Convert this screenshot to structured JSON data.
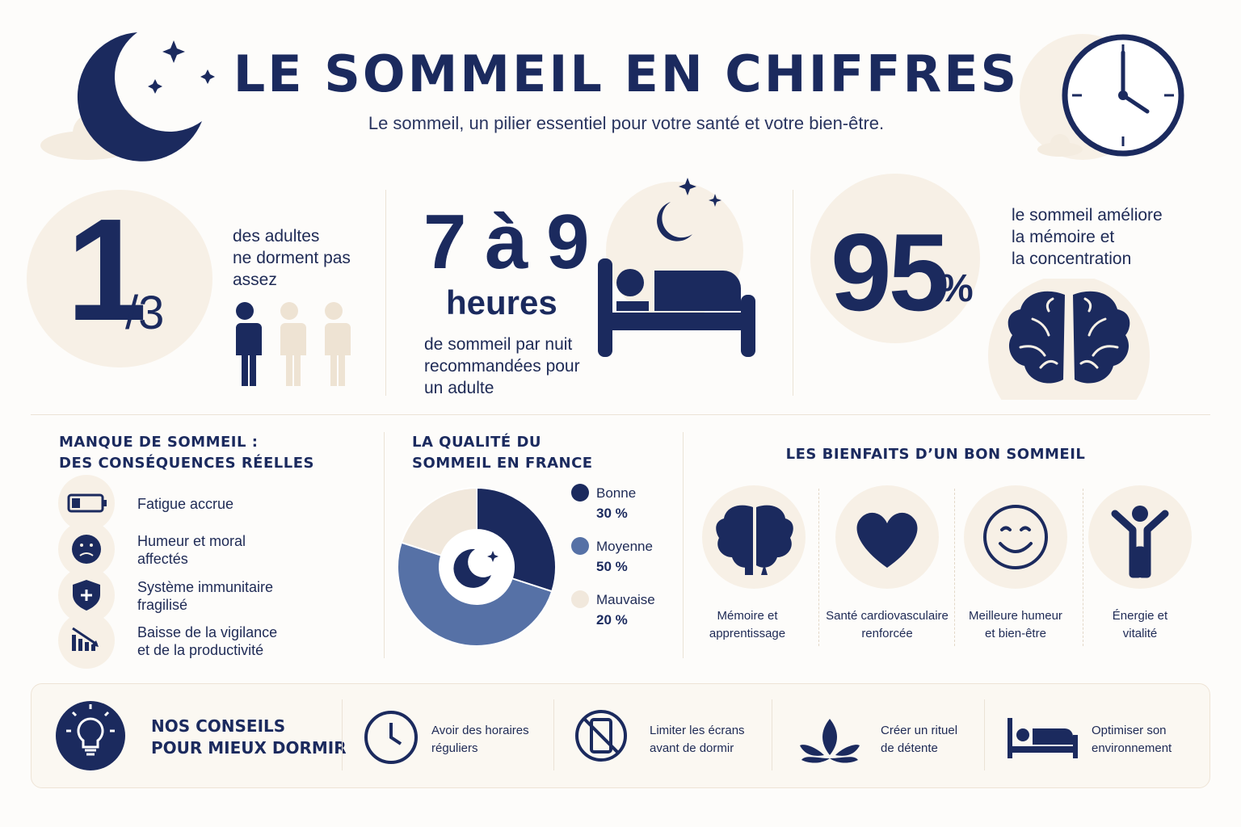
{
  "header": {
    "title": "LE SOMMEIL EN CHIFFRES",
    "subtitle": "Le sommeil, un pilier essentiel pour votre santé et votre bien-être."
  },
  "stats": [
    {
      "big": "1",
      "small": "/3",
      "lines": [
        "des adultes",
        "ne dorment pas",
        "assez"
      ]
    },
    {
      "big": "7 à 9",
      "small": "heures",
      "lines": [
        "de sommeil par nuit",
        "recommandées pour",
        "un adulte"
      ]
    },
    {
      "big": "95",
      "small": "%",
      "lines": [
        "le sommeil améliore",
        "la mémoire et",
        "la concentration"
      ]
    }
  ],
  "consequences": {
    "title": [
      "MANQUE DE SOMMEIL :",
      "DES CONSÉQUENCES RÉELLES"
    ],
    "items": [
      [
        "Fatigue accrue"
      ],
      [
        "Humeur et moral",
        "affectés"
      ],
      [
        "Système immunitaire",
        "fragilisé"
      ],
      [
        "Baisse de la vigilance",
        "et de la productivité"
      ]
    ]
  },
  "chart_data": {
    "type": "pie",
    "title": "LA QUALITÉ DU SOMMEIL EN FRANCE",
    "categories": [
      "Bonne",
      "Moyenne",
      "Mauvaise"
    ],
    "values": [
      30,
      50,
      20
    ],
    "value_labels": [
      "30 %",
      "50 %",
      "20 %"
    ],
    "colors": [
      "#1b2a5e",
      "#5671a6",
      "#f1e8dc"
    ]
  },
  "benefits": {
    "title": "LES BIENFAITS D’UN BON SOMMEIL",
    "items": [
      [
        "Mémoire et",
        "apprentissage"
      ],
      [
        "Santé cardiovasculaire",
        "renforcée"
      ],
      [
        "Meilleure humeur",
        "et bien-être"
      ],
      [
        "Énergie et",
        "vitalité"
      ]
    ]
  },
  "tips": {
    "title": [
      "NOS CONSEILS",
      "POUR MIEUX DORMIR"
    ],
    "items": [
      [
        "Avoir des horaires",
        "réguliers"
      ],
      [
        "Limiter les écrans",
        "avant de dormir"
      ],
      [
        "Créer un rituel",
        "de détente"
      ],
      [
        "Optimiser son",
        "environnement"
      ]
    ]
  }
}
